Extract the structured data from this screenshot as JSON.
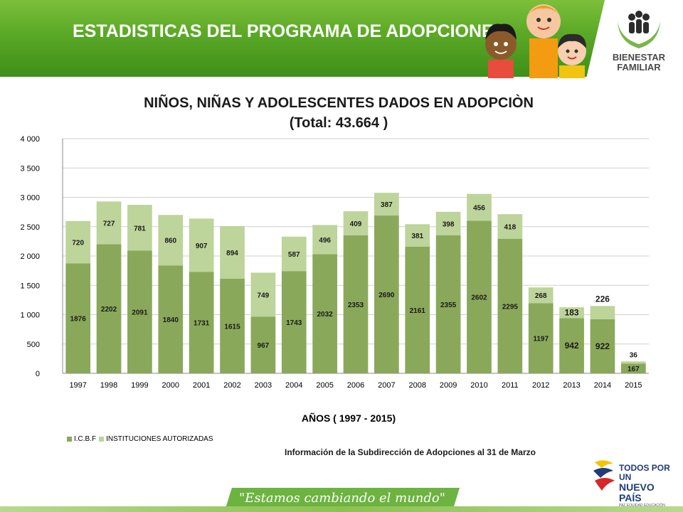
{
  "header": {
    "title": "ESTADISTICAS DEL PROGRAMA DE ADOPCIONES",
    "logo_line1": "BIENESTAR",
    "logo_line2": "FAMILIAR"
  },
  "colors": {
    "header_green": "#5aa826",
    "icbf": "#8aa85a",
    "instituciones": "#bdd49a"
  },
  "chart_data": {
    "type": "bar",
    "stacked": true,
    "title": "NIÑOS, NIÑAS Y ADOLESCENTES DADOS EN ADOPCIÒN",
    "subtitle": "(Total: 43.664 )",
    "xlabel": "AÑOS ( 1997 - 2015)",
    "ylabel": "",
    "ylim": [
      0,
      4000
    ],
    "yticks": [
      "0",
      "500",
      "1 000",
      "1 500",
      "2 000",
      "2 500",
      "3 000",
      "3 500",
      "4 000"
    ],
    "grid": true,
    "legend_position": "bottom-left",
    "categories": [
      "1997",
      "1998",
      "1999",
      "2000",
      "2001",
      "2002",
      "2003",
      "2004",
      "2005",
      "2006",
      "2007",
      "2008",
      "2009",
      "2010",
      "2011",
      "2012",
      "2013",
      "2014",
      "2015"
    ],
    "series": [
      {
        "name": "I.C.B.F",
        "values": [
          1876,
          2202,
          2091,
          1840,
          1731,
          1615,
          967,
          1743,
          2032,
          2353,
          2690,
          2161,
          2355,
          2602,
          2295,
          1197,
          942,
          922,
          167
        ]
      },
      {
        "name": "INSTITUCIONES AUTORIZADAS",
        "values": [
          720,
          727,
          781,
          860,
          907,
          894,
          749,
          587,
          496,
          409,
          387,
          381,
          398,
          456,
          418,
          268,
          183,
          226,
          36
        ]
      }
    ]
  },
  "footer": {
    "source": "Información de la Subdirección de Adopciones al  31 de Marzo",
    "gov_line1": "TODOS POR UN",
    "gov_line2": "NUEVO PAÍS",
    "gov_line3": "PAZ  EQUIDAD  EDUCACIÓN",
    "slogan": "\"Estamos cambiando el mundo\""
  }
}
